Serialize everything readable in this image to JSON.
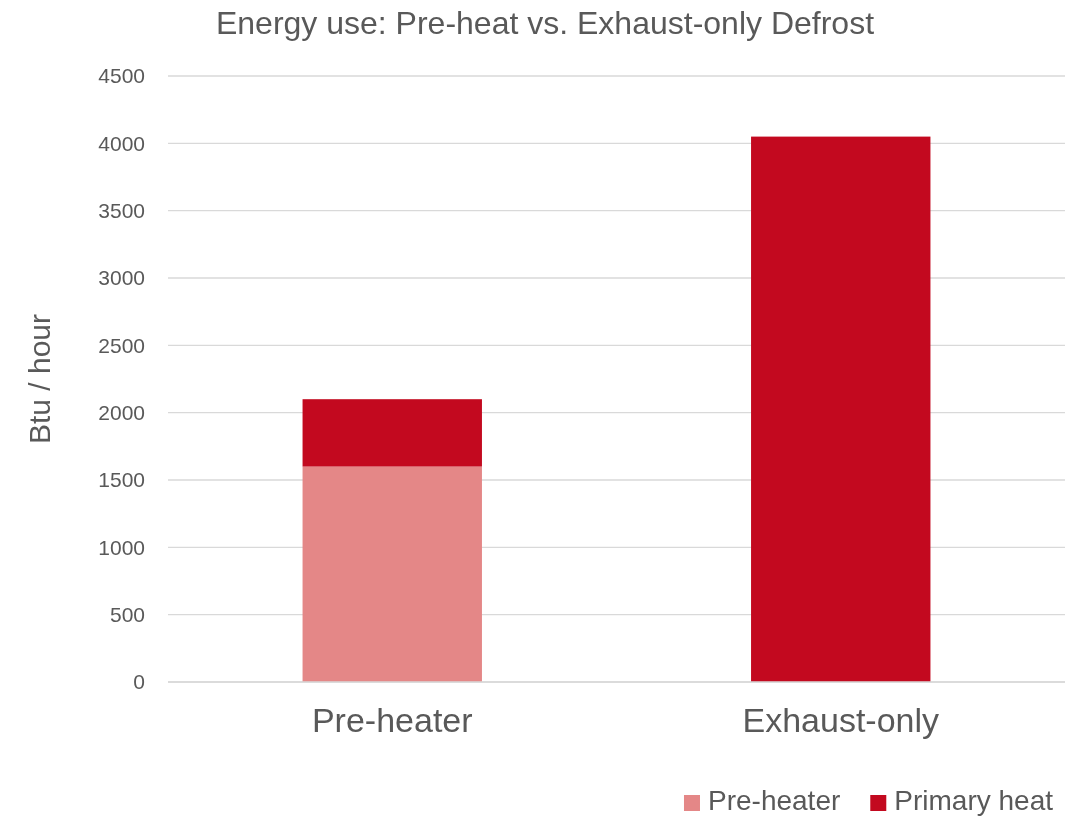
{
  "chart_data": {
    "type": "bar",
    "title": "Energy use: Pre-heat vs. Exhaust-only Defrost",
    "ylabel": "Btu / hour",
    "categories": [
      "Pre-heater",
      "Exhaust-only"
    ],
    "stacked": true,
    "series": [
      {
        "name": "Pre-heater",
        "color": "#e48787",
        "values": [
          1600,
          null
        ]
      },
      {
        "name": "Primary heat",
        "color": "#c3091f",
        "values": [
          500,
          4050
        ]
      }
    ],
    "ylim": [
      0,
      4500
    ],
    "yticks": [
      0,
      500,
      1000,
      1500,
      2000,
      2500,
      3000,
      3500,
      4000,
      4500
    ],
    "grid": "y",
    "legend": "bottom right"
  }
}
